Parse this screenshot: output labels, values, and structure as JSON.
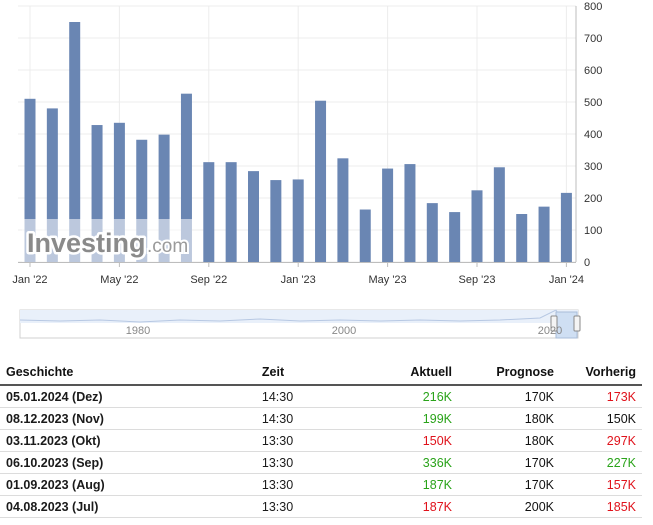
{
  "chart_data": {
    "type": "bar",
    "categories": [
      "Jan '22",
      "Feb '22",
      "Mar '22",
      "Apr '22",
      "May '22",
      "Jun '22",
      "Jul '22",
      "Aug '22",
      "Sep '22",
      "Oct '22",
      "Nov '22",
      "Dec '22",
      "Jan '23",
      "Feb '23",
      "Mar '23",
      "Apr '23",
      "May '23",
      "Jun '23",
      "Jul '23",
      "Aug '23",
      "Sep '23",
      "Oct '23",
      "Nov '23",
      "Dec '23"
    ],
    "values": [
      510,
      480,
      750,
      428,
      435,
      382,
      398,
      526,
      312,
      312,
      284,
      256,
      258,
      504,
      324,
      164,
      292,
      306,
      184,
      156,
      224,
      296,
      150,
      173
    ],
    "extra_latest_value": 216,
    "x_tick_labels": [
      "Jan '22",
      "May '22",
      "Sep '22",
      "Jan '23",
      "May '23",
      "Sep '23",
      "Jan '24"
    ],
    "y_tick_labels": [
      "0",
      "100",
      "200",
      "300",
      "400",
      "500",
      "600",
      "700",
      "800"
    ],
    "ylim": [
      0,
      800
    ],
    "grid": true,
    "bar_color": "#6a86b3",
    "watermark": "Investing.com",
    "navigator_labels": [
      "1980",
      "2000",
      "2020"
    ]
  },
  "table": {
    "headers": {
      "history": "Geschichte",
      "time": "Zeit",
      "actual": "Aktuell",
      "forecast": "Prognose",
      "previous": "Vorherig"
    },
    "rows": [
      {
        "date": "05.01.2024 (Dez)",
        "time": "14:30",
        "actual": "216K",
        "actual_color": "green",
        "forecast": "170K",
        "previous": "173K",
        "previous_color": "red"
      },
      {
        "date": "08.12.2023 (Nov)",
        "time": "14:30",
        "actual": "199K",
        "actual_color": "green",
        "forecast": "180K",
        "previous": "150K",
        "previous_color": "black"
      },
      {
        "date": "03.11.2023 (Okt)",
        "time": "13:30",
        "actual": "150K",
        "actual_color": "red",
        "forecast": "180K",
        "previous": "297K",
        "previous_color": "red"
      },
      {
        "date": "06.10.2023 (Sep)",
        "time": "13:30",
        "actual": "336K",
        "actual_color": "green",
        "forecast": "170K",
        "previous": "227K",
        "previous_color": "green"
      },
      {
        "date": "01.09.2023 (Aug)",
        "time": "13:30",
        "actual": "187K",
        "actual_color": "green",
        "forecast": "170K",
        "previous": "157K",
        "previous_color": "red"
      },
      {
        "date": "04.08.2023 (Jul)",
        "time": "13:30",
        "actual": "187K",
        "actual_color": "red",
        "forecast": "200K",
        "previous": "185K",
        "previous_color": "red"
      }
    ]
  }
}
